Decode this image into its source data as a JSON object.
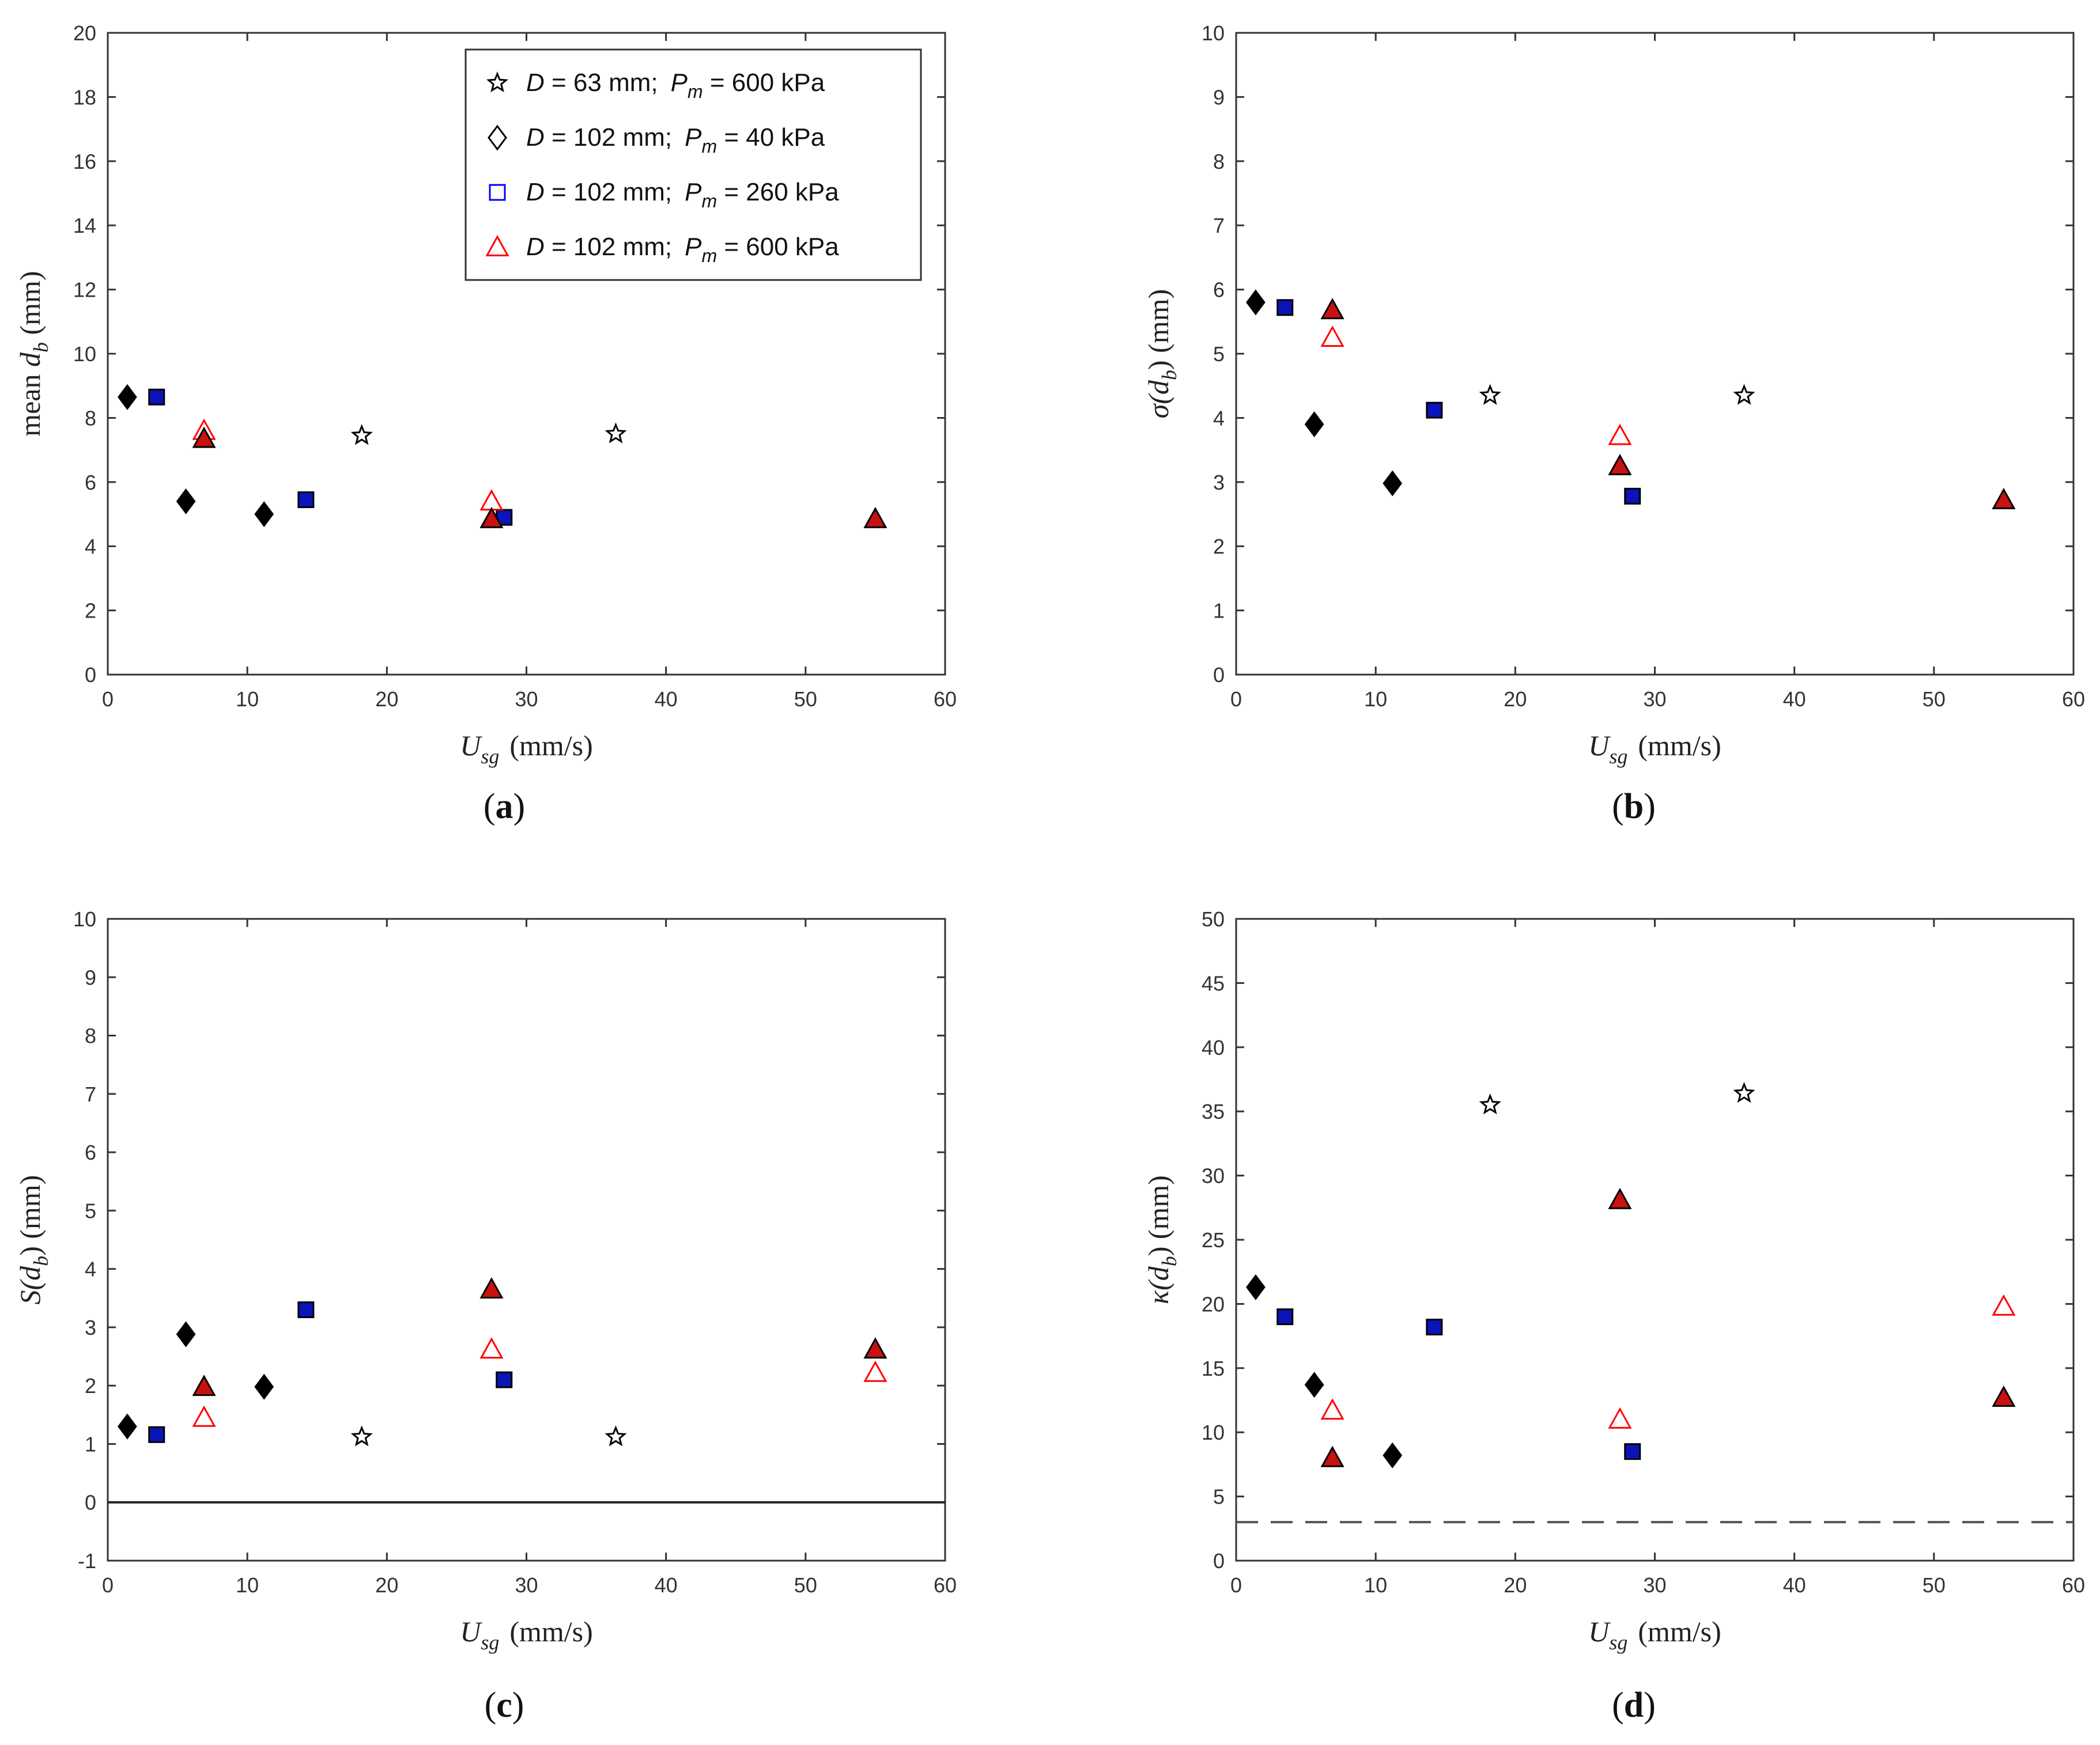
{
  "colors": {
    "axis": "#333333",
    "black_marker": "#000000",
    "blue_marker": "#0000ff",
    "blue_fill": "#0b14b8",
    "red_marker": "#ff0000",
    "red_fill": "#c8120f",
    "dashed_line": "#555555",
    "zero_line": "#222222"
  },
  "legend": {
    "entries": [
      {
        "marker": "star",
        "color": "#000000",
        "filled": false,
        "d_label": "D",
        "d_value": " = 63 mm;",
        "p_label": "P",
        "p_sub": "m",
        "p_value": " = 600 kPa"
      },
      {
        "marker": "diamond",
        "color": "#000000",
        "filled": false,
        "d_label": "D",
        "d_value": " = 102 mm;",
        "p_label": "P",
        "p_sub": "m",
        "p_value": " = 40 kPa"
      },
      {
        "marker": "square",
        "color": "#0000ff",
        "filled": false,
        "d_label": "D",
        "d_value": " = 102 mm;",
        "p_label": "P",
        "p_sub": "m",
        "p_value": " = 260 kPa"
      },
      {
        "marker": "triangle",
        "color": "#ff0000",
        "filled": false,
        "d_label": "D",
        "d_value": " = 102 mm;",
        "p_label": "P",
        "p_sub": "m",
        "p_value": " = 600 kPa"
      }
    ]
  },
  "chart_data": [
    {
      "panel": "(a)",
      "type": "scatter",
      "xlabel_main": "U",
      "xlabel_sub": "sg",
      "xlabel_unit": "(mm/s)",
      "ylabel_pre": "mean ",
      "ylabel_sym": "d",
      "ylabel_sub": "b",
      "ylabel_post": " (mm)",
      "xlim": [
        0,
        60
      ],
      "ylim": [
        0,
        20
      ],
      "xticks": [
        "0",
        "10",
        "20",
        "30",
        "40",
        "50",
        "60"
      ],
      "yticks": [
        "0",
        "2",
        "4",
        "6",
        "8",
        "10",
        "12",
        "14",
        "16",
        "18",
        "20"
      ],
      "reference_line": null,
      "series": [
        {
          "name": "D = 63 mm; Pm = 600 kPa",
          "marker": "star",
          "filled": false,
          "color": "#000000",
          "points": [
            [
              18.2,
              7.45
            ],
            [
              36.4,
              7.5
            ]
          ]
        },
        {
          "name": "D = 102 mm; Pm = 40 kPa",
          "marker": "diamond",
          "filled": true,
          "color": "#000000",
          "points": [
            [
              1.4,
              8.65
            ],
            [
              5.6,
              5.4
            ],
            [
              11.2,
              5.0
            ]
          ]
        },
        {
          "name": "D = 102 mm; Pm = 260 kPa",
          "marker": "square",
          "filled": true,
          "color": "#0b14b8",
          "points": [
            [
              3.5,
              8.65
            ],
            [
              14.2,
              5.45
            ],
            [
              28.4,
              4.9
            ]
          ]
        },
        {
          "name": "D = 102 mm; Pm = 600 kPa (open)",
          "marker": "triangle",
          "filled": false,
          "color": "#ff0000",
          "points": [
            [
              6.9,
              7.6
            ],
            [
              27.5,
              5.4
            ]
          ]
        },
        {
          "name": "D = 102 mm; Pm = 600 kPa (filled)",
          "marker": "triangle",
          "filled": true,
          "color": "#c8120f",
          "points": [
            [
              6.9,
              7.35
            ],
            [
              27.5,
              4.85
            ],
            [
              55.0,
              4.85
            ]
          ]
        }
      ]
    },
    {
      "panel": "(b)",
      "type": "scatter",
      "xlabel_main": "U",
      "xlabel_sub": "sg",
      "xlabel_unit": "(mm/s)",
      "ylabel_pre": "σ(",
      "ylabel_sym": "d",
      "ylabel_sub": "b",
      "ylabel_post": ") (mm)",
      "xlim": [
        0,
        60
      ],
      "ylim": [
        0,
        10
      ],
      "xticks": [
        "0",
        "10",
        "20",
        "30",
        "40",
        "50",
        "60"
      ],
      "yticks": [
        "0",
        "1",
        "2",
        "3",
        "4",
        "5",
        "6",
        "7",
        "8",
        "9",
        "10"
      ],
      "reference_line": null,
      "series": [
        {
          "name": "D = 63 mm; Pm = 600 kPa",
          "marker": "star",
          "filled": false,
          "color": "#000000",
          "points": [
            [
              18.2,
              4.35
            ],
            [
              36.4,
              4.35
            ]
          ]
        },
        {
          "name": "D = 102 mm; Pm = 40 kPa",
          "marker": "diamond",
          "filled": true,
          "color": "#000000",
          "points": [
            [
              1.4,
              5.8
            ],
            [
              5.6,
              3.9
            ],
            [
              11.2,
              2.98
            ]
          ]
        },
        {
          "name": "D = 102 mm; Pm = 260 kPa",
          "marker": "square",
          "filled": true,
          "color": "#0b14b8",
          "points": [
            [
              3.5,
              5.72
            ],
            [
              14.2,
              4.12
            ],
            [
              28.4,
              2.78
            ]
          ]
        },
        {
          "name": "D = 102 mm; Pm = 600 kPa (open)",
          "marker": "triangle",
          "filled": false,
          "color": "#ff0000",
          "points": [
            [
              6.9,
              5.25
            ],
            [
              27.5,
              3.72
            ]
          ]
        },
        {
          "name": "D = 102 mm; Pm = 600 kPa (filled)",
          "marker": "triangle",
          "filled": true,
          "color": "#c8120f",
          "points": [
            [
              6.9,
              5.68
            ],
            [
              27.5,
              3.25
            ],
            [
              55.0,
              2.72
            ]
          ]
        }
      ]
    },
    {
      "panel": "(c)",
      "type": "scatter",
      "xlabel_main": "U",
      "xlabel_sub": "sg",
      "xlabel_unit": "(mm/s)",
      "ylabel_pre": "S(",
      "ylabel_sym": "d",
      "ylabel_sub": "b",
      "ylabel_post": ") (mm)",
      "xlim": [
        0,
        60
      ],
      "ylim": [
        -1,
        10
      ],
      "xticks": [
        "0",
        "10",
        "20",
        "30",
        "40",
        "50",
        "60"
      ],
      "yticks": [
        "-1",
        "0",
        "1",
        "2",
        "3",
        "4",
        "5",
        "6",
        "7",
        "8",
        "9",
        "10"
      ],
      "reference_line": {
        "y": 0,
        "style": "solid"
      },
      "series": [
        {
          "name": "D = 63 mm; Pm = 600 kPa",
          "marker": "star",
          "filled": false,
          "color": "#000000",
          "points": [
            [
              18.2,
              1.12
            ],
            [
              36.4,
              1.12
            ]
          ]
        },
        {
          "name": "D = 102 mm; Pm = 40 kPa",
          "marker": "diamond",
          "filled": true,
          "color": "#000000",
          "points": [
            [
              1.4,
              1.3
            ],
            [
              5.6,
              2.88
            ],
            [
              11.2,
              1.98
            ]
          ]
        },
        {
          "name": "D = 102 mm; Pm = 260 kPa",
          "marker": "square",
          "filled": true,
          "color": "#0b14b8",
          "points": [
            [
              3.5,
              1.16
            ],
            [
              14.2,
              3.3
            ],
            [
              28.4,
              2.1
            ]
          ]
        },
        {
          "name": "D = 102 mm; Pm = 600 kPa (open)",
          "marker": "triangle",
          "filled": false,
          "color": "#ff0000",
          "points": [
            [
              6.9,
              1.45
            ],
            [
              27.5,
              2.62
            ],
            [
              55.0,
              2.22
            ]
          ]
        },
        {
          "name": "D = 102 mm; Pm = 600 kPa (filled)",
          "marker": "triangle",
          "filled": true,
          "color": "#c8120f",
          "points": [
            [
              6.9,
              1.98
            ],
            [
              27.5,
              3.65
            ],
            [
              55.0,
              2.62
            ]
          ]
        }
      ]
    },
    {
      "panel": "(d)",
      "type": "scatter",
      "xlabel_main": "U",
      "xlabel_sub": "sg",
      "xlabel_unit": "(mm/s)",
      "ylabel_pre": "κ(",
      "ylabel_sym": "d",
      "ylabel_sub": "b",
      "ylabel_post": ") (mm)",
      "xlim": [
        0,
        60
      ],
      "ylim": [
        0,
        50
      ],
      "xticks": [
        "0",
        "10",
        "20",
        "30",
        "40",
        "50",
        "60"
      ],
      "yticks": [
        "0",
        "5",
        "10",
        "15",
        "20",
        "25",
        "30",
        "35",
        "40",
        "45",
        "50"
      ],
      "reference_line": {
        "y": 3,
        "style": "dashed"
      },
      "series": [
        {
          "name": "D = 63 mm; Pm = 600 kPa",
          "marker": "star",
          "filled": false,
          "color": "#000000",
          "points": [
            [
              18.2,
              35.5
            ],
            [
              36.4,
              36.4
            ]
          ]
        },
        {
          "name": "D = 102 mm; Pm = 40 kPa",
          "marker": "diamond",
          "filled": true,
          "color": "#000000",
          "points": [
            [
              1.4,
              21.3
            ],
            [
              5.6,
              13.7
            ],
            [
              11.2,
              8.2
            ]
          ]
        },
        {
          "name": "D = 102 mm; Pm = 260 kPa",
          "marker": "square",
          "filled": true,
          "color": "#0b14b8",
          "points": [
            [
              3.5,
              19.0
            ],
            [
              14.2,
              18.2
            ],
            [
              28.4,
              8.5
            ]
          ]
        },
        {
          "name": "D = 102 mm; Pm = 600 kPa (open)",
          "marker": "triangle",
          "filled": false,
          "color": "#ff0000",
          "points": [
            [
              6.9,
              11.7
            ],
            [
              27.5,
              11.0
            ],
            [
              55.0,
              19.8
            ]
          ]
        },
        {
          "name": "D = 102 mm; Pm = 600 kPa (filled)",
          "marker": "triangle",
          "filled": true,
          "color": "#c8120f",
          "points": [
            [
              6.9,
              8.0
            ],
            [
              27.5,
              28.1
            ],
            [
              55.0,
              12.7
            ]
          ]
        }
      ]
    }
  ]
}
